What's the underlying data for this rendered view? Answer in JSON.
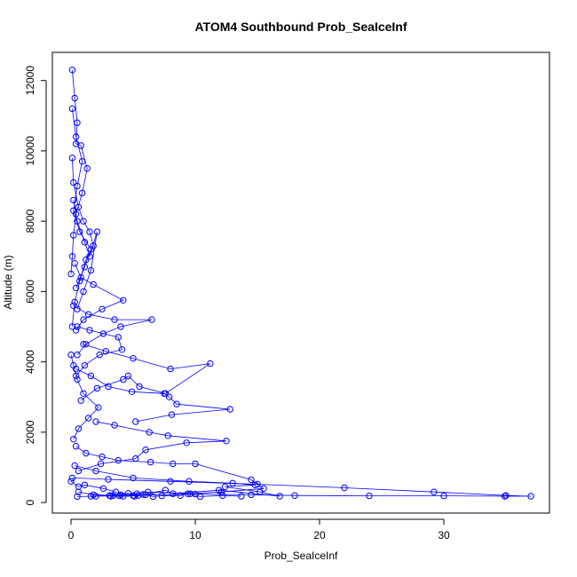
{
  "chart_data": {
    "type": "line",
    "title": "ATOM4 Southbound Prob_SeaIceInf",
    "xlabel": "Prob_SeaIceInf",
    "ylabel": "Altitude (m)",
    "xlim": [
      -1.5,
      38.5
    ],
    "ylim": [
      -300,
      12800
    ],
    "x_ticks": [
      0,
      10,
      20,
      30
    ],
    "y_ticks": [
      0,
      2000,
      4000,
      6000,
      8000,
      10000,
      12000
    ],
    "grid": false,
    "legend": "none",
    "color": "#0000ff",
    "series": [
      {
        "x": [
          0.1,
          0.3,
          0.5,
          0.4,
          0.8,
          1.3,
          0.9,
          0.4,
          0.2,
          0.1,
          0.0
        ],
        "y": [
          12300,
          11500,
          10800,
          10200,
          10150,
          9500,
          8800,
          8200,
          7600,
          7000,
          6500
        ]
      },
      {
        "x": [
          0.1,
          0.2,
          0.6,
          1.0,
          1.5,
          1.8,
          1.2,
          0.7,
          0.3,
          0.1
        ],
        "y": [
          9800,
          9100,
          8400,
          8000,
          7700,
          7300,
          6900,
          6300,
          5700,
          5000
        ]
      },
      {
        "x": [
          0.2,
          0.5,
          1.1,
          1.5,
          2.1,
          1.6,
          1.0,
          0.5
        ],
        "y": [
          8600,
          8000,
          7400,
          7000,
          7700,
          6600,
          6000,
          5500
        ]
      },
      {
        "x": [
          0.3,
          0.8,
          1.8,
          4.2,
          2.5,
          1.0,
          0.4
        ],
        "y": [
          6800,
          6400,
          6200,
          5750,
          5500,
          5200,
          4900
        ]
      },
      {
        "x": [
          0.2,
          1.4,
          3.5,
          6.5,
          4.0,
          2.6,
          1.2,
          0.5
        ],
        "y": [
          5600,
          5350,
          5200,
          5200,
          5000,
          4800,
          4500,
          4200
        ]
      },
      {
        "x": [
          0.5,
          1.5,
          3.8,
          4.1,
          2.3,
          1.1,
          0.4
        ],
        "y": [
          5000,
          4900,
          4700,
          4350,
          4200,
          3900,
          3600
        ]
      },
      {
        "x": [
          1.0,
          2.8,
          5.0,
          8.0,
          11.2,
          7.6,
          5.5,
          4.6,
          4.2,
          2.1,
          0.8
        ],
        "y": [
          4500,
          4300,
          4100,
          3800,
          3950,
          3100,
          3300,
          3600,
          3500,
          3250,
          2900
        ]
      },
      {
        "x": [
          0.4,
          1.6,
          3.0,
          4.9,
          7.5,
          7.9,
          8.5,
          12.8,
          8.1,
          5.2
        ],
        "y": [
          3800,
          3600,
          3300,
          3150,
          3100,
          3000,
          2800,
          2650,
          2500,
          2300
        ]
      },
      {
        "x": [
          2.0,
          3.5,
          6.3,
          7.8,
          12.5,
          9.3,
          6.0,
          5.2,
          2.4,
          0.6
        ],
        "y": [
          2300,
          2200,
          2000,
          1900,
          1750,
          1700,
          1500,
          1250,
          1100,
          900
        ]
      },
      {
        "x": [
          0.4,
          1.2,
          2.5,
          3.8,
          6.4,
          8.2,
          10.0,
          14.5,
          15.5,
          12.1,
          9.6,
          6.2,
          5.3,
          3.1,
          1.6
        ],
        "y": [
          1600,
          1400,
          1300,
          1200,
          1150,
          1100,
          1100,
          650,
          400,
          300,
          250,
          300,
          250,
          200,
          180
        ]
      },
      {
        "x": [
          0.3,
          2.0,
          5.0,
          9.5,
          13.0,
          14.8,
          12.4,
          15.2,
          16.8,
          11.9,
          8.2,
          7.6,
          5.4,
          3.2
        ],
        "y": [
          1050,
          900,
          700,
          600,
          550,
          500,
          450,
          300,
          180,
          350,
          250,
          350,
          200,
          180
        ]
      },
      {
        "x": [
          0.1,
          3.0,
          8.0,
          15.0,
          22.0,
          29.2,
          35.0,
          37.0,
          34.9,
          30.0,
          24.0,
          18.0,
          14.5,
          10.0,
          5.0,
          2.0,
          0.5
        ],
        "y": [
          700,
          660,
          600,
          520,
          420,
          300,
          200,
          180,
          180,
          190,
          190,
          200,
          220,
          240,
          200,
          180,
          170
        ]
      },
      {
        "x": [
          0.6,
          1.8,
          3.4,
          4.2,
          6.0,
          6.6,
          7.3,
          8.8,
          9.4,
          10.4,
          12.2,
          13.7
        ],
        "y": [
          300,
          220,
          200,
          180,
          220,
          170,
          190,
          200,
          250,
          170,
          200,
          180
        ]
      },
      {
        "x": [
          0.0,
          0.6,
          1.1,
          2.6,
          3.6,
          4.0,
          4.6,
          5.1,
          5.8,
          3.9
        ],
        "y": [
          600,
          450,
          500,
          400,
          300,
          220,
          260,
          180,
          230,
          190
        ]
      },
      {
        "x": [
          0.1,
          0.4,
          0.9,
          0.5,
          0.2,
          0.7,
          1.6,
          1.1,
          0.4
        ],
        "y": [
          11200,
          10400,
          9700,
          9000,
          8300,
          7700,
          7200,
          6700,
          6100
        ]
      },
      {
        "x": [
          0.0,
          0.2,
          0.5,
          1.0,
          2.2,
          1.4,
          0.6,
          0.2
        ],
        "y": [
          4200,
          3900,
          3500,
          3100,
          2700,
          2400,
          2100,
          1800
        ]
      }
    ]
  }
}
